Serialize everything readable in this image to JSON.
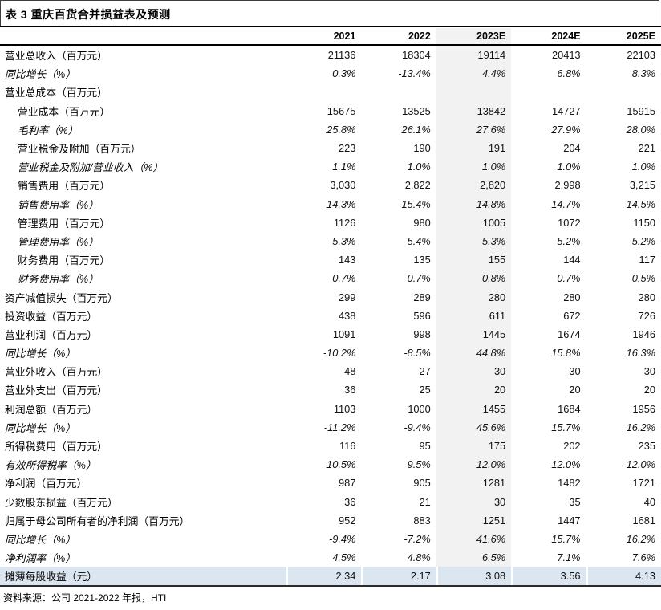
{
  "title": "表 3  重庆百货合并损益表及预测",
  "source": "资料来源：公司 2021-2022 年报，HTI",
  "colors": {
    "highlight_column_bg": "#f2f2f2",
    "highlight_row_bg": "#dce6f1",
    "header_rule": "#000000",
    "bottom_rule": "#2b2b2b",
    "text": "#000000"
  },
  "chart_data": {
    "type": "table",
    "title": "表 3 重庆百货合并损益表及预测",
    "columns": [
      "2021",
      "2022",
      "2023E",
      "2024E",
      "2025E"
    ],
    "highlight_column": "2023E",
    "rows": [
      {
        "label": "营业总收入（百万元）",
        "indent": 0,
        "italic": false,
        "highlight": false,
        "values": [
          "21136",
          "18304",
          "19114",
          "20413",
          "22103"
        ]
      },
      {
        "label": "同比增长（%）",
        "indent": 0,
        "italic": true,
        "highlight": false,
        "values": [
          "0.3%",
          "-13.4%",
          "4.4%",
          "6.8%",
          "8.3%"
        ]
      },
      {
        "label": "营业总成本（百万元）",
        "indent": 0,
        "italic": false,
        "highlight": false,
        "values": [
          "",
          "",
          "",
          "",
          ""
        ]
      },
      {
        "label": "营业成本（百万元）",
        "indent": 1,
        "italic": false,
        "highlight": false,
        "values": [
          "15675",
          "13525",
          "13842",
          "14727",
          "15915"
        ]
      },
      {
        "label": "毛利率（%）",
        "indent": 1,
        "italic": true,
        "highlight": false,
        "values": [
          "25.8%",
          "26.1%",
          "27.6%",
          "27.9%",
          "28.0%"
        ]
      },
      {
        "label": "营业税金及附加（百万元）",
        "indent": 1,
        "italic": false,
        "highlight": false,
        "values": [
          "223",
          "190",
          "191",
          "204",
          "221"
        ]
      },
      {
        "label": "营业税金及附加/营业收入（%）",
        "indent": 1,
        "italic": true,
        "highlight": false,
        "values": [
          "1.1%",
          "1.0%",
          "1.0%",
          "1.0%",
          "1.0%"
        ]
      },
      {
        "label": "销售费用（百万元）",
        "indent": 1,
        "italic": false,
        "highlight": false,
        "values": [
          "3,030",
          "2,822",
          "2,820",
          "2,998",
          "3,215"
        ]
      },
      {
        "label": "销售费用率（%）",
        "indent": 1,
        "italic": true,
        "highlight": false,
        "values": [
          "14.3%",
          "15.4%",
          "14.8%",
          "14.7%",
          "14.5%"
        ]
      },
      {
        "label": "管理费用（百万元）",
        "indent": 1,
        "italic": false,
        "highlight": false,
        "values": [
          "1126",
          "980",
          "1005",
          "1072",
          "1150"
        ]
      },
      {
        "label": "管理费用率（%）",
        "indent": 1,
        "italic": true,
        "highlight": false,
        "values": [
          "5.3%",
          "5.4%",
          "5.3%",
          "5.2%",
          "5.2%"
        ]
      },
      {
        "label": "财务费用（百万元）",
        "indent": 1,
        "italic": false,
        "highlight": false,
        "values": [
          "143",
          "135",
          "155",
          "144",
          "117"
        ]
      },
      {
        "label": "财务费用率（%）",
        "indent": 1,
        "italic": true,
        "highlight": false,
        "values": [
          "0.7%",
          "0.7%",
          "0.8%",
          "0.7%",
          "0.5%"
        ]
      },
      {
        "label": "资产减值损失（百万元）",
        "indent": 0,
        "italic": false,
        "highlight": false,
        "values": [
          "299",
          "289",
          "280",
          "280",
          "280"
        ]
      },
      {
        "label": "投资收益（百万元）",
        "indent": 0,
        "italic": false,
        "highlight": false,
        "values": [
          "438",
          "596",
          "611",
          "672",
          "726"
        ]
      },
      {
        "label": "营业利润（百万元）",
        "indent": 0,
        "italic": false,
        "highlight": false,
        "values": [
          "1091",
          "998",
          "1445",
          "1674",
          "1946"
        ]
      },
      {
        "label": "同比增长（%）",
        "indent": 0,
        "italic": true,
        "highlight": false,
        "values": [
          "-10.2%",
          "-8.5%",
          "44.8%",
          "15.8%",
          "16.3%"
        ]
      },
      {
        "label": "营业外收入（百万元）",
        "indent": 0,
        "italic": false,
        "highlight": false,
        "values": [
          "48",
          "27",
          "30",
          "30",
          "30"
        ]
      },
      {
        "label": "营业外支出（百万元）",
        "indent": 0,
        "italic": false,
        "highlight": false,
        "values": [
          "36",
          "25",
          "20",
          "20",
          "20"
        ]
      },
      {
        "label": "利润总额（百万元）",
        "indent": 0,
        "italic": false,
        "highlight": false,
        "values": [
          "1103",
          "1000",
          "1455",
          "1684",
          "1956"
        ]
      },
      {
        "label": "同比增长（%）",
        "indent": 0,
        "italic": true,
        "highlight": false,
        "values": [
          "-11.2%",
          "-9.4%",
          "45.6%",
          "15.7%",
          "16.2%"
        ]
      },
      {
        "label": "所得税费用（百万元）",
        "indent": 0,
        "italic": false,
        "highlight": false,
        "values": [
          "116",
          "95",
          "175",
          "202",
          "235"
        ]
      },
      {
        "label": "有效所得税率（%）",
        "indent": 0,
        "italic": true,
        "highlight": false,
        "values": [
          "10.5%",
          "9.5%",
          "12.0%",
          "12.0%",
          "12.0%"
        ]
      },
      {
        "label": "净利润（百万元）",
        "indent": 0,
        "italic": false,
        "highlight": false,
        "values": [
          "987",
          "905",
          "1281",
          "1482",
          "1721"
        ]
      },
      {
        "label": "少数股东损益（百万元）",
        "indent": 0,
        "italic": false,
        "highlight": false,
        "values": [
          "36",
          "21",
          "30",
          "35",
          "40"
        ]
      },
      {
        "label": "归属于母公司所有者的净利润（百万元）",
        "indent": 0,
        "italic": false,
        "highlight": false,
        "values": [
          "952",
          "883",
          "1251",
          "1447",
          "1681"
        ]
      },
      {
        "label": "同比增长（%）",
        "indent": 0,
        "italic": true,
        "highlight": false,
        "values": [
          "-9.4%",
          "-7.2%",
          "41.6%",
          "15.7%",
          "16.2%"
        ]
      },
      {
        "label": "净利润率（%）",
        "indent": 0,
        "italic": true,
        "highlight": false,
        "values": [
          "4.5%",
          "4.8%",
          "6.5%",
          "7.1%",
          "7.6%"
        ]
      },
      {
        "label": "摊薄每股收益（元）",
        "indent": 0,
        "italic": false,
        "highlight": true,
        "values": [
          "2.34",
          "2.17",
          "3.08",
          "3.56",
          "4.13"
        ]
      }
    ]
  }
}
